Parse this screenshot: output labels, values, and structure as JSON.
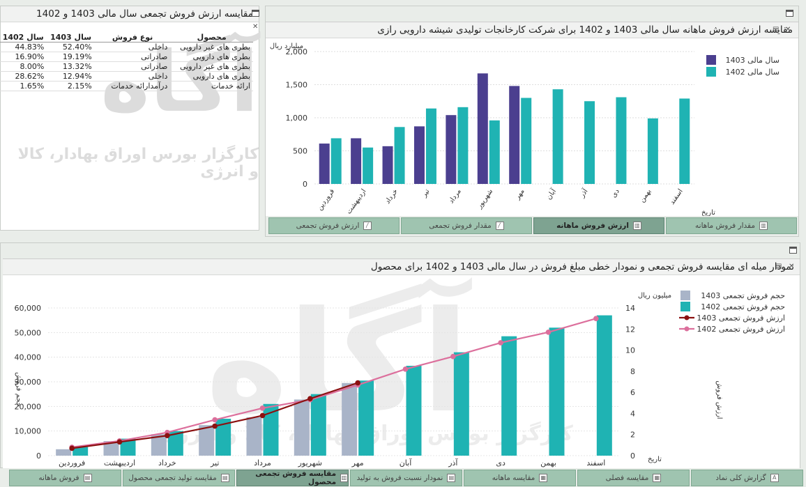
{
  "table_panel": {
    "title": "مقایسه ارزش فروش تجمعی سال مالی 1403 و 1402",
    "headers": [
      "محصول",
      "نوع فروش",
      "سال 1403",
      "سال 1402"
    ],
    "rows": [
      [
        "بطری های غیر دارویی",
        "داخلی",
        "52.40%",
        "44.83%"
      ],
      [
        "بطری های دارویی",
        "صادراتی",
        "19.19%",
        "16.90%"
      ],
      [
        "بطری های غیر دارویی",
        "صادراتی",
        "13.32%",
        "8.00%"
      ],
      [
        "بطری های دارویی",
        "داخلی",
        "12.94%",
        "28.62%"
      ],
      [
        "ارائه خدمات",
        "درآمدارائه خدمات",
        "2.15%",
        "1.65%"
      ]
    ]
  },
  "watermark": {
    "logo_text": "آگاه",
    "subtitle": "کارگزار بورس اوراق بهادار، کالا و انرژی"
  },
  "monthly_panel": {
    "title": "مقایسه ارزش فروش ماهانه سال مالی 1403 و 1402 برای شرکت کارخانجات تولیدی شیشه دارویی رازی",
    "tabs": [
      {
        "label": "مقدار فروش ماهانه",
        "icon": "bar-chart-icon",
        "active": false
      },
      {
        "label": "ارزش فروش ماهانه",
        "icon": "bar-chart-icon",
        "active": true
      },
      {
        "label": "مقدار فروش تجمعی",
        "icon": "line-chart-icon",
        "active": false
      },
      {
        "label": "ارزش فروش تجمعی",
        "icon": "line-chart-icon",
        "active": false
      }
    ]
  },
  "cumulative_panel": {
    "title": "نمودار میله ای مقایسه فروش تجمعی و نمودار خطی مبلغ فروش در سال مالی 1403 و 1402 برای محصول"
  },
  "bottom_tabs": [
    {
      "label": "گزارش کلی نماد",
      "icon": "a-icon",
      "active": false
    },
    {
      "label": "مقایسه فصلی",
      "icon": "table-icon",
      "active": false
    },
    {
      "label": "مقایسه ماهانه",
      "icon": "table-icon",
      "active": false
    },
    {
      "label": "نمودار نسبت فروش به تولید",
      "icon": "chart-icon",
      "active": false
    },
    {
      "label": "مقایسه فروش تجمعی محصول",
      "icon": "bar-chart-icon",
      "active": true
    },
    {
      "label": "مقایسه تولید تجمعی محصول",
      "icon": "chart-icon",
      "active": false
    },
    {
      "label": "فروش ماهانه",
      "icon": "chart-icon",
      "active": false
    }
  ],
  "colors": {
    "s1403": "#4b3f8f",
    "s1402": "#1fb3b3",
    "vol1403": "#a9b4c8",
    "line1403": "#8b1010",
    "line1402": "#dc6f9c"
  },
  "chart_data": [
    {
      "type": "bar",
      "ylabel": "میلیارد ریال",
      "xlabel": "تاریخ",
      "ylim": [
        0,
        2000
      ],
      "yticks": [
        "0",
        "500",
        "1,000",
        "1,500",
        "2,000"
      ],
      "categories": [
        "فروردین",
        "اردیبهشت",
        "خرداد",
        "تیر",
        "مرداد",
        "شهریور",
        "مهر",
        "آبان",
        "آذر",
        "دی",
        "بهمن",
        "اسفند"
      ],
      "series": [
        {
          "name": "سال مالی 1403",
          "values": [
            610,
            690,
            570,
            870,
            1040,
            1670,
            1480,
            null,
            null,
            null,
            null,
            null
          ]
        },
        {
          "name": "سال مالی 1402",
          "values": [
            690,
            550,
            860,
            1140,
            1160,
            960,
            1300,
            1430,
            1250,
            1310,
            990,
            1290
          ]
        }
      ],
      "legend": "top-right",
      "grid": true
    },
    {
      "type": "bar",
      "ylabel": "حجم فروش",
      "y2label": "ارزش فروش",
      "y2unit": "میلیون ریال",
      "xlabel": "تاریخ",
      "ylim": [
        0,
        60000
      ],
      "yticks": [
        "0",
        "10,000",
        "20,000",
        "30,000",
        "40,000",
        "50,000",
        "60,000"
      ],
      "y2lim": [
        0,
        14
      ],
      "y2ticks": [
        "0",
        "2",
        "4",
        "6",
        "8",
        "10",
        "12",
        "14"
      ],
      "categories": [
        "فروردین",
        "اردیبهشت",
        "خرداد",
        "تیر",
        "مرداد",
        "شهریور",
        "مهر",
        "آبان",
        "آذر",
        "دی",
        "بهمن",
        "اسفند"
      ],
      "series": [
        {
          "name": "حجم فروش تجمعی 1403",
          "kind": "bar",
          "values": [
            2600,
            5900,
            8700,
            12400,
            15600,
            22800,
            29500,
            null,
            null,
            null,
            null,
            null
          ]
        },
        {
          "name": "حجم فروش تجمعی 1402",
          "kind": "bar",
          "values": [
            3500,
            6900,
            10000,
            15000,
            21000,
            25000,
            30500,
            36500,
            42000,
            48500,
            52000,
            57000
          ]
        },
        {
          "name": "ارزش فروش تجمعی 1403",
          "kind": "line",
          "values": [
            0.7,
            1.3,
            1.9,
            2.8,
            3.8,
            5.4,
            6.9,
            null,
            null,
            null,
            null,
            null
          ]
        },
        {
          "name": "ارزش فروش تجمعی 1402",
          "kind": "line",
          "values": [
            0.8,
            1.4,
            2.2,
            3.4,
            4.5,
            5.3,
            6.7,
            8.2,
            9.4,
            10.7,
            11.7,
            13.0
          ]
        }
      ],
      "legend": "top-right",
      "grid": true
    }
  ]
}
